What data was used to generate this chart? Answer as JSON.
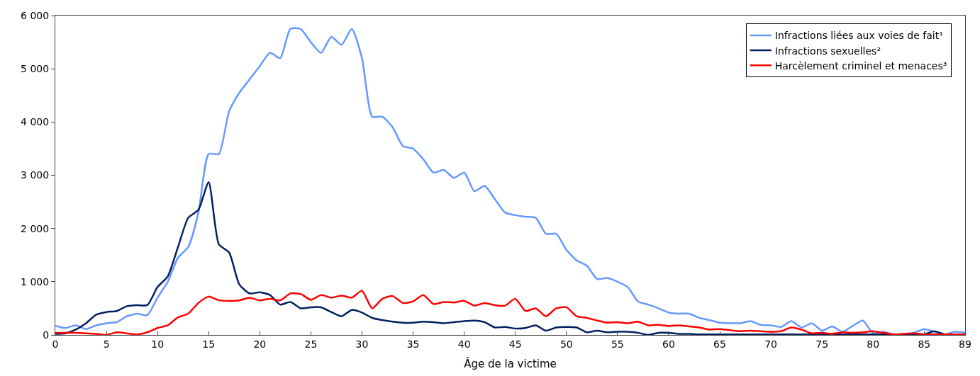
{
  "chart_data": {
    "type": "line",
    "xlabel": "Âge de la victime",
    "x": [
      0,
      1,
      2,
      3,
      4,
      5,
      6,
      7,
      8,
      9,
      10,
      11,
      12,
      13,
      14,
      15,
      16,
      17,
      18,
      19,
      20,
      21,
      22,
      23,
      24,
      25,
      26,
      27,
      28,
      29,
      30,
      31,
      32,
      33,
      34,
      35,
      36,
      37,
      38,
      39,
      40,
      41,
      42,
      43,
      44,
      45,
      46,
      47,
      48,
      49,
      50,
      51,
      52,
      53,
      54,
      55,
      56,
      57,
      58,
      59,
      60,
      61,
      62,
      63,
      64,
      65,
      66,
      67,
      68,
      69,
      70,
      71,
      72,
      73,
      74,
      75,
      76,
      77,
      78,
      79,
      80,
      81,
      82,
      83,
      84,
      85,
      86,
      87,
      88,
      89
    ],
    "series": [
      {
        "name": "Infractions liées aux voies de fait¹",
        "color": "#6699ff",
        "values": [
          170,
          130,
          180,
          110,
          180,
          220,
          240,
          350,
          400,
          370,
          700,
          1000,
          1450,
          1650,
          2300,
          3400,
          3400,
          4200,
          4550,
          4800,
          5050,
          5300,
          5200,
          5750,
          5750,
          5500,
          5300,
          5600,
          5450,
          5750,
          5200,
          4100,
          4100,
          3900,
          3550,
          3500,
          3300,
          3050,
          3100,
          2950,
          3050,
          2700,
          2800,
          2550,
          2300,
          2250,
          2220,
          2200,
          1900,
          1900,
          1600,
          1400,
          1300,
          1050,
          1070,
          1000,
          900,
          630,
          570,
          500,
          420,
          400,
          400,
          320,
          280,
          230,
          220,
          220,
          260,
          190,
          180,
          150,
          260,
          140,
          220,
          80,
          160,
          60,
          170,
          270,
          30,
          60,
          10,
          20,
          40,
          110,
          60,
          10,
          60,
          40
        ]
      },
      {
        "name": "Infractions sexuelles²",
        "color": "#002060",
        "values": [
          20,
          30,
          100,
          220,
          380,
          430,
          450,
          540,
          560,
          560,
          900,
          1100,
          1650,
          2200,
          2350,
          2870,
          1700,
          1550,
          950,
          780,
          800,
          750,
          570,
          620,
          500,
          520,
          520,
          430,
          350,
          470,
          420,
          320,
          280,
          250,
          230,
          230,
          250,
          240,
          220,
          240,
          260,
          270,
          240,
          140,
          150,
          120,
          130,
          180,
          80,
          140,
          150,
          140,
          50,
          80,
          50,
          60,
          60,
          40,
          0,
          40,
          40,
          20,
          20,
          10,
          10,
          10,
          10,
          10,
          10,
          10,
          10,
          10,
          10,
          10,
          10,
          10,
          10,
          10,
          10,
          10,
          10,
          10,
          10,
          10,
          10,
          10,
          70,
          10,
          10,
          10
        ]
      },
      {
        "name": "Harcèlement criminel et menaces³",
        "color": "#ff0000",
        "values": [
          40,
          40,
          40,
          30,
          20,
          0,
          50,
          30,
          10,
          50,
          130,
          180,
          330,
          400,
          600,
          720,
          650,
          640,
          650,
          700,
          650,
          680,
          650,
          780,
          770,
          660,
          750,
          700,
          740,
          700,
          830,
          500,
          680,
          730,
          600,
          630,
          750,
          580,
          620,
          610,
          640,
          550,
          600,
          560,
          550,
          680,
          450,
          500,
          350,
          500,
          520,
          350,
          320,
          270,
          230,
          240,
          220,
          250,
          180,
          190,
          170,
          180,
          160,
          140,
          100,
          110,
          90,
          70,
          80,
          70,
          60,
          70,
          140,
          100,
          30,
          40,
          20,
          50,
          40,
          50,
          70,
          40,
          10,
          20,
          30,
          10,
          10,
          10,
          10,
          10
        ]
      }
    ],
    "xlim": [
      0,
      89
    ],
    "xticks": [
      0,
      5,
      10,
      15,
      20,
      25,
      30,
      35,
      40,
      45,
      50,
      55,
      60,
      65,
      70,
      75,
      80,
      85,
      89
    ],
    "ylim": [
      0,
      6000
    ],
    "yticks": [
      {
        "value": 0,
        "label": "0"
      },
      {
        "value": 1000,
        "label": "1 000"
      },
      {
        "value": 2000,
        "label": "2 000"
      },
      {
        "value": 3000,
        "label": "3 000"
      },
      {
        "value": 4000,
        "label": "4 000"
      },
      {
        "value": 5000,
        "label": "5 000"
      },
      {
        "value": 6000,
        "label": "6 000"
      }
    ],
    "legend": "top right",
    "marker": "none",
    "line_style": "solid"
  }
}
